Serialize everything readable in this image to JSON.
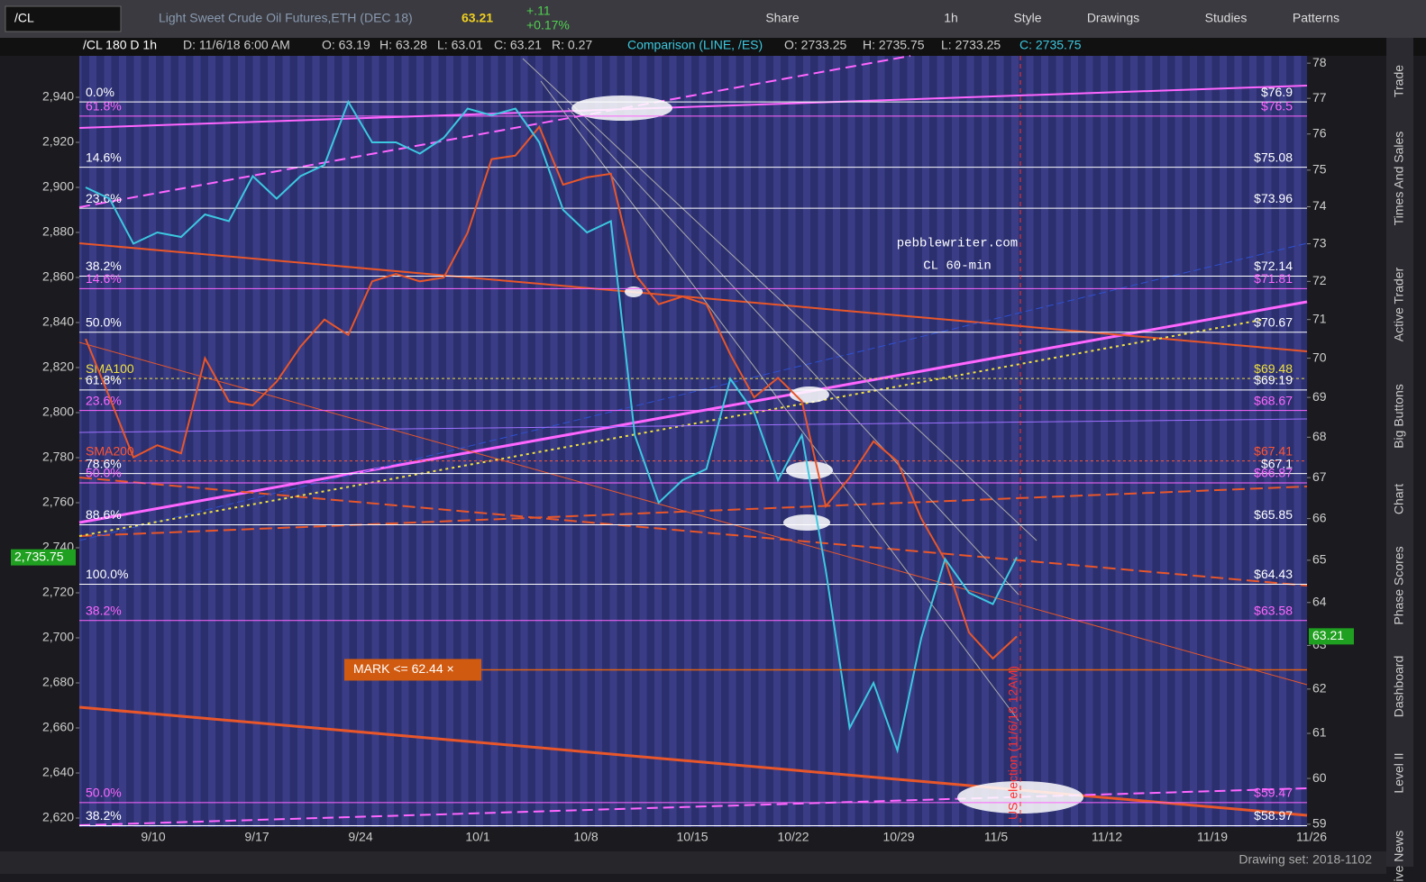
{
  "toolbar": {
    "symbol": "/CL",
    "description": "Light Sweet Crude Oil Futures,ETH (DEC 18)",
    "last": "63.21",
    "change": "+.11",
    "change_pct": "+0.17%",
    "buttons": [
      "Share",
      "1h",
      "Style",
      "Drawings",
      "Studies",
      "Patterns"
    ]
  },
  "info_bar": {
    "symbol": "/CL 180 D 1h",
    "date": "D: 11/6/18 6:00 AM",
    "open": "O: 63.19",
    "high": "H: 63.28",
    "low": "L: 63.01",
    "close": "C: 63.21",
    "range": "R: 0.27",
    "comparison": "Comparison (LINE, /ES)",
    "comp_open": "O: 2733.25",
    "comp_high": "H: 2735.75",
    "comp_low": "L: 2733.25",
    "comp_close": "C: 2735.75"
  },
  "chart_data": {
    "type": "line",
    "ylim": [
      2616,
      2958.4
    ],
    "yticks": [
      {
        "value": 2620,
        "label": "2,620"
      },
      {
        "value": 2640,
        "label": "2,640"
      },
      {
        "value": 2660,
        "label": "2,660"
      },
      {
        "value": 2680,
        "label": "2,680"
      },
      {
        "value": 2700,
        "label": "2,700"
      },
      {
        "value": 2720,
        "label": "2,720"
      },
      {
        "value": 2740,
        "label": "2,740"
      },
      {
        "value": 2760,
        "label": "2,760"
      },
      {
        "value": 2780,
        "label": "2,780"
      },
      {
        "value": 2800,
        "label": "2,800"
      },
      {
        "value": 2820,
        "label": "2,820"
      },
      {
        "value": 2840,
        "label": "2,840"
      },
      {
        "value": 2860,
        "label": "2,860"
      },
      {
        "value": 2880,
        "label": "2,880"
      },
      {
        "value": 2900,
        "label": "2,900"
      },
      {
        "value": 2920,
        "label": "2,920"
      },
      {
        "value": 2940,
        "label": "2,940"
      }
    ],
    "y2lim": [
      58.94,
      78.21
    ],
    "y2_log": true,
    "y2ticks": [
      59,
      60,
      61,
      62,
      63,
      64,
      65,
      66,
      67,
      68,
      69,
      70,
      71,
      72,
      73,
      74,
      75,
      76,
      77,
      78
    ],
    "x_labels": [
      "9/10",
      "9/17",
      "9/24",
      "10/1",
      "10/8",
      "10/15",
      "10/22",
      "10/29",
      "11/5",
      "11/12",
      "11/19",
      "11/26"
    ],
    "series": [
      {
        "name": "/CL",
        "color": "#e8562a",
        "axis": "y2",
        "values": [
          70.5,
          69.0,
          67.5,
          67.8,
          67.6,
          70.0,
          68.9,
          68.8,
          69.4,
          70.3,
          71.0,
          70.6,
          72.0,
          72.2,
          72.0,
          72.1,
          73.3,
          75.3,
          75.4,
          76.2,
          74.6,
          74.8,
          74.9,
          72.2,
          71.4,
          71.6,
          71.4,
          70.1,
          69.0,
          69.5,
          68.9,
          66.3,
          67.0,
          67.9,
          67.4,
          66.0,
          65.0,
          63.3,
          62.7,
          63.21
        ]
      },
      {
        "name": "/ES",
        "color": "#3cc8e0",
        "values": [
          2900,
          2895,
          2875,
          2880,
          2878,
          2888,
          2885,
          2905,
          2895,
          2905,
          2910,
          2938,
          2920,
          2920,
          2915,
          2922,
          2935,
          2932,
          2935,
          2920,
          2890,
          2880,
          2885,
          2790,
          2760,
          2770,
          2775,
          2815,
          2800,
          2770,
          2790,
          2730,
          2660,
          2680,
          2650,
          2700,
          2735,
          2720,
          2715,
          2735.75
        ]
      }
    ],
    "levels": [
      {
        "pct": "0.0%",
        "value": 76.9,
        "label": "$76.9",
        "color": "#ffffff"
      },
      {
        "pct": "61.8%",
        "value": 76.5,
        "label": "$76.5",
        "color": "#ff66ff"
      },
      {
        "pct": "14.6%",
        "value": 75.08,
        "label": "$75.08",
        "color": "#ffffff"
      },
      {
        "pct": "23.6%",
        "value": 73.96,
        "label": "$73.96",
        "color": "#ffffff"
      },
      {
        "pct": "38.2%",
        "value": 72.14,
        "label": "$72.14",
        "color": "#ffffff"
      },
      {
        "pct": "14.6%",
        "value": 71.81,
        "label": "$71.81",
        "color": "#ff66ff"
      },
      {
        "pct": "50.0%",
        "value": 70.67,
        "label": "$70.67",
        "color": "#ffffff"
      },
      {
        "pct": "SMA100",
        "value": 69.48,
        "label": "$69.48",
        "color": "#f0e040"
      },
      {
        "pct": "61.8%",
        "value": 69.19,
        "label": "$69.19",
        "color": "#ffffff"
      },
      {
        "pct": "23.6%",
        "value": 68.67,
        "label": "$68.67",
        "color": "#ff66ff"
      },
      {
        "pct": "SMA200",
        "value": 67.41,
        "label": "$67.41",
        "color": "#ff5533"
      },
      {
        "pct": "78.6%",
        "value": 67.1,
        "label": "$67.1",
        "color": "#ffffff"
      },
      {
        "pct": "50.0%",
        "value": 66.87,
        "label": "$66.87",
        "color": "#ff66ff"
      },
      {
        "pct": "88.6%",
        "value": 65.85,
        "label": "$65.85",
        "color": "#ffffff"
      },
      {
        "pct": "100.0%",
        "value": 64.43,
        "label": "$64.43",
        "color": "#ffffff"
      },
      {
        "pct": "38.2%",
        "value": 63.58,
        "label": "$63.58",
        "color": "#ff66ff"
      },
      {
        "pct": "50.0%",
        "value": 59.47,
        "label": "$59.47",
        "color": "#ff66ff"
      },
      {
        "pct": "38.2%",
        "value": 58.97,
        "label": "$58.97",
        "color": "#ffffff"
      }
    ],
    "mark": {
      "value": 62.44,
      "label": "MARK <= 62.44 ×"
    },
    "last_price": 63.21,
    "comp_last": {
      "value": 2735.75,
      "label": "2,735.75"
    },
    "watermark": [
      "pebblewriter.com",
      "CL 60-min"
    ],
    "event": "US election (11/6/18 12AM)"
  },
  "side_tabs": [
    "Trade",
    "Times And Sales",
    "Active Trader",
    "Big Buttons",
    "Chart",
    "Phase Scores",
    "Dashboard",
    "Level II",
    "Live News"
  ],
  "footer": {
    "drawing_set": "Drawing set: 2018-1102"
  }
}
